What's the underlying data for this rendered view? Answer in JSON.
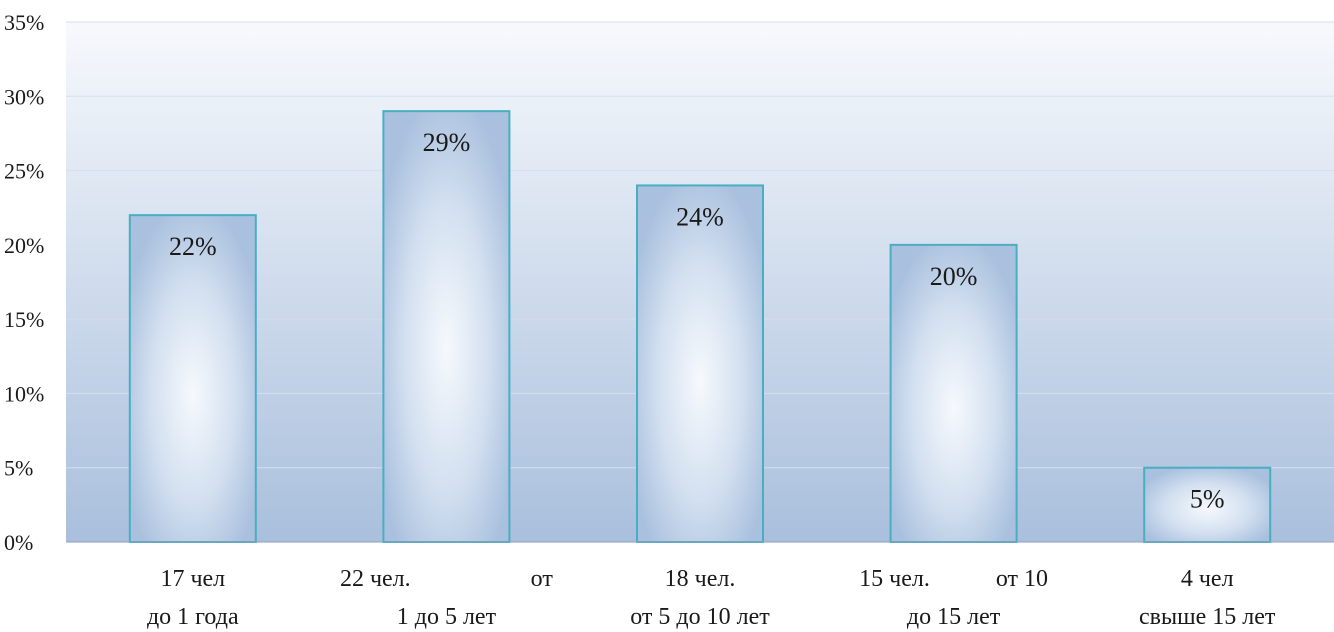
{
  "chart_data": {
    "type": "bar",
    "categories": [
      [
        "17 чел",
        "до 1 года"
      ],
      [
        "22 чел.                    от",
        "1 до 5 лет"
      ],
      [
        "18 чел.",
        "от 5 до 10 лет"
      ],
      [
        "15 чел.           от 10",
        "до 15 лет"
      ],
      [
        "4 чел",
        "свыше 15 лет"
      ]
    ],
    "values": [
      22,
      29,
      24,
      20,
      5
    ],
    "data_labels": [
      "22%",
      "29%",
      "24%",
      "20%",
      "5%"
    ],
    "ylim": [
      0,
      35
    ],
    "y_ticks": [
      0,
      5,
      10,
      15,
      20,
      25,
      30,
      35
    ],
    "y_tick_labels": [
      "0%",
      "5%",
      "10%",
      "15%",
      "20%",
      "25%",
      "30%",
      "35%"
    ],
    "grid": true,
    "colors": {
      "bar_border": "#4aaec3",
      "bar_fill_edge": "#a9c0de",
      "bar_fill_center": "#f6f9fd",
      "plot_bg_top": "#f7f9fd",
      "plot_bg_bottom": "#a9bfdc",
      "gridline": "#d4dfee",
      "axis": "#8aa0be"
    }
  }
}
